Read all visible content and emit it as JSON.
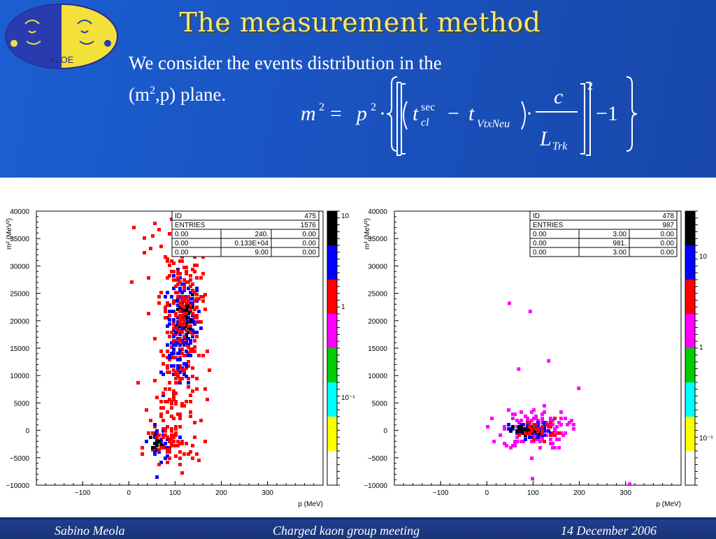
{
  "slide": {
    "title": "The measurement method",
    "intro_line1": "We consider the events distribution in the",
    "intro_line2_pre": "(m",
    "intro_line2_sup": "2",
    "intro_line2_post": ",p) plane.",
    "logo_text": "KLOE"
  },
  "footer": {
    "author": "Sabino Meola",
    "event": "Charged kaon group meeting",
    "date": "14 December 2006"
  },
  "chart_data": [
    {
      "type": "heatmap",
      "xlabel": "p (MeV)",
      "ylabel": "m² (MeV²)",
      "xlim": [
        -200,
        420
      ],
      "ylim": [
        -10000,
        40000
      ],
      "x_ticks": [
        "−100",
        "0",
        "100",
        "200",
        "300"
      ],
      "x_tick_values": [
        -100,
        0,
        100,
        200,
        300
      ],
      "y_ticks": [
        "40000",
        "35000",
        "30000",
        "25000",
        "20000",
        "15000",
        "10000",
        "5000",
        "0",
        "−5000",
        "−10000"
      ],
      "y_tick_values": [
        40000,
        35000,
        30000,
        25000,
        20000,
        15000,
        10000,
        5000,
        0,
        -5000,
        -10000
      ],
      "stats": [
        [
          "ID",
          "",
          "475"
        ],
        [
          "ENTRIES",
          "",
          "1576"
        ],
        [
          "0.00",
          "240.",
          "0.00"
        ],
        [
          "0.00",
          "0.133E+04",
          "0.00"
        ],
        [
          "0.00",
          "9.00",
          "0.00"
        ]
      ],
      "palette_labels": [
        "10",
        "1",
        "10⁻¹"
      ],
      "palette_levels": [
        "black",
        "blue",
        "red",
        "magenta",
        "green",
        "cyan",
        "yellow"
      ],
      "clusters": [
        {
          "cx": 115,
          "cy": 21000,
          "sx": 18,
          "sy": 3500,
          "n": 130,
          "color": "#0000ff"
        },
        {
          "cx": 120,
          "cy": 21500,
          "sx": 10,
          "sy": 2500,
          "n": 45,
          "color": "#000000"
        },
        {
          "cx": 110,
          "cy": 16000,
          "sx": 20,
          "sy": 5000,
          "n": 110,
          "color": "#ff0000"
        },
        {
          "cx": 115,
          "cy": 24000,
          "sx": 25,
          "sy": 5000,
          "n": 120,
          "color": "#ff0000"
        },
        {
          "cx": 105,
          "cy": 13000,
          "sx": 15,
          "sy": 2500,
          "n": 40,
          "color": "#0000ff"
        },
        {
          "cx": 95,
          "cy": 5000,
          "sx": 28,
          "sy": 4000,
          "n": 70,
          "color": "#ff0000"
        },
        {
          "cx": 65,
          "cy": -2000,
          "sx": 14,
          "sy": 1500,
          "n": 35,
          "color": "#0000ff"
        },
        {
          "cx": 55,
          "cy": -1800,
          "sx": 6,
          "sy": 700,
          "n": 12,
          "color": "#000000"
        },
        {
          "cx": 90,
          "cy": -3000,
          "sx": 30,
          "sy": 2500,
          "n": 60,
          "color": "#ff0000"
        },
        {
          "cx": 70,
          "cy": 32000,
          "sx": 40,
          "sy": 5000,
          "n": 25,
          "color": "#ff0000"
        }
      ]
    },
    {
      "type": "heatmap",
      "xlabel": "p (MeV)",
      "ylabel": "m² (MeV²)",
      "xlim": [
        -200,
        420
      ],
      "ylim": [
        -10000,
        40000
      ],
      "x_ticks": [
        "−100",
        "0",
        "100",
        "200",
        "300"
      ],
      "x_tick_values": [
        -100,
        0,
        100,
        200,
        300
      ],
      "y_ticks": [
        "40000",
        "35000",
        "30000",
        "25000",
        "20000",
        "15000",
        "10000",
        "5000",
        "0",
        "−5000",
        "−10000"
      ],
      "y_tick_values": [
        40000,
        35000,
        30000,
        25000,
        20000,
        15000,
        10000,
        5000,
        0,
        -5000,
        -10000
      ],
      "stats": [
        [
          "ID",
          "",
          "478"
        ],
        [
          "ENTRIES",
          "",
          "987"
        ],
        [
          "0.00",
          "3.00",
          "0.00"
        ],
        [
          "0.00",
          "981.",
          "0.00"
        ],
        [
          "0.00",
          "3.00",
          "0.00"
        ]
      ],
      "palette_labels": [
        "10",
        "1",
        "10⁻¹"
      ],
      "palette_levels": [
        "black",
        "blue",
        "red",
        "magenta",
        "green",
        "cyan",
        "yellow"
      ],
      "clusters": [
        {
          "cx": 100,
          "cy": 500,
          "sx": 35,
          "sy": 1800,
          "n": 150,
          "color": "#ff00ff"
        },
        {
          "cx": 90,
          "cy": 300,
          "sx": 22,
          "sy": 700,
          "n": 70,
          "color": "#0000ff"
        },
        {
          "cx": 80,
          "cy": 200,
          "sx": 14,
          "sy": 400,
          "n": 35,
          "color": "#000000"
        },
        {
          "cx": 110,
          "cy": 600,
          "sx": 20,
          "sy": 900,
          "n": 30,
          "color": "#ff0000"
        }
      ],
      "outliers": [
        [
          45,
          23500
        ],
        [
          90,
          22000
        ],
        [
          65,
          11500
        ],
        [
          130,
          13000
        ],
        [
          195,
          8000
        ],
        [
          95,
          -8500
        ],
        [
          305,
          -9500
        ]
      ]
    }
  ]
}
